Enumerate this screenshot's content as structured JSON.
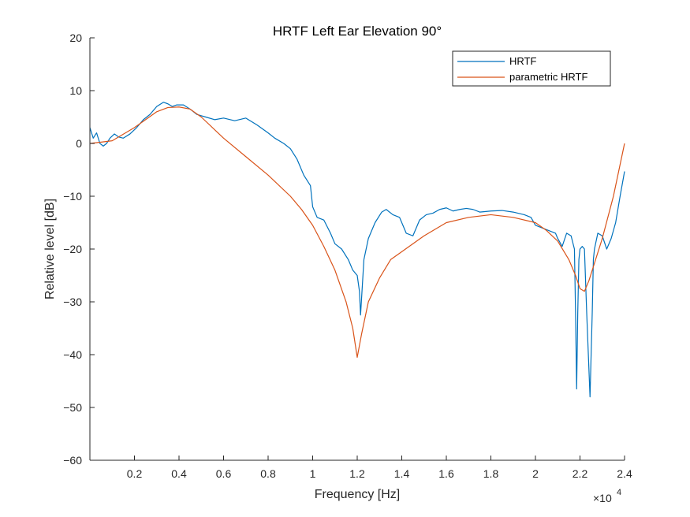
{
  "chart_data": {
    "type": "line",
    "title": "HRTF Left Ear Elevation 90°",
    "xlabel": "Frequency [Hz]",
    "ylabel": "Relative level [dB]",
    "x_exponent_label": "×10",
    "x_exponent_power": "4",
    "xlim": [
      0,
      24000
    ],
    "ylim": [
      -60,
      20
    ],
    "x_ticks": [
      2000,
      4000,
      6000,
      8000,
      10000,
      12000,
      14000,
      16000,
      18000,
      20000,
      22000,
      24000
    ],
    "x_tick_labels": [
      "0.2",
      "0.4",
      "0.6",
      "0.8",
      "1",
      "1.2",
      "1.4",
      "1.6",
      "1.8",
      "2",
      "2.2",
      "2.4"
    ],
    "y_ticks": [
      20,
      10,
      0,
      -10,
      -20,
      -30,
      -40,
      -50,
      -60
    ],
    "y_tick_labels": [
      "20",
      "10",
      "0",
      "−10",
      "−20",
      "−30",
      "−40",
      "−50",
      "−60"
    ],
    "grid": false,
    "legend_position": "top-right",
    "series": [
      {
        "name": "HRTF",
        "color": "#0072BD",
        "x": [
          0,
          150,
          300,
          450,
          600,
          750,
          900,
          1100,
          1300,
          1500,
          1800,
          2100,
          2400,
          2700,
          3000,
          3300,
          3500,
          3700,
          3900,
          4200,
          4500,
          4800,
          5200,
          5600,
          6000,
          6500,
          7000,
          7500,
          8000,
          8300,
          8700,
          9000,
          9300,
          9600,
          9900,
          10000,
          10200,
          10500,
          10800,
          11000,
          11300,
          11600,
          11800,
          12000,
          12100,
          12150,
          12200,
          12300,
          12500,
          12800,
          13100,
          13300,
          13600,
          13900,
          14200,
          14500,
          14800,
          15100,
          15400,
          15700,
          16000,
          16300,
          16600,
          16900,
          17200,
          17500,
          18000,
          18500,
          19000,
          19500,
          19800,
          20000,
          20300,
          20600,
          20900,
          21000,
          21200,
          21400,
          21600,
          21750,
          21800,
          21850,
          21900,
          21950,
          22000,
          22100,
          22200,
          22300,
          22450,
          22550,
          22600,
          22650,
          22700,
          22800,
          23000,
          23200,
          23400,
          23600,
          23800,
          24000
        ],
        "y": [
          3,
          1,
          2,
          0,
          -0.5,
          0,
          1,
          1.8,
          1.2,
          1,
          1.8,
          3,
          4.5,
          5.5,
          7,
          7.8,
          7.5,
          7,
          7.3,
          7.3,
          6.5,
          5.5,
          5,
          4.5,
          4.8,
          4.3,
          4.8,
          3.5,
          2,
          1,
          0,
          -1,
          -3,
          -6,
          -8,
          -12,
          -14,
          -14.5,
          -17,
          -19,
          -20,
          -22,
          -24,
          -25,
          -28,
          -32.5,
          -29,
          -22,
          -18,
          -15,
          -13,
          -12.5,
          -13.5,
          -14,
          -17,
          -17.5,
          -14.5,
          -13.5,
          -13.2,
          -12.5,
          -12.2,
          -12.8,
          -12.5,
          -12.3,
          -12.5,
          -13,
          -12.8,
          -12.7,
          -13,
          -13.5,
          -14,
          -15.5,
          -16,
          -16.5,
          -17,
          -18,
          -19.5,
          -17,
          -17.5,
          -20,
          -32,
          -46.5,
          -32,
          -22,
          -20,
          -19.5,
          -20,
          -32,
          -48,
          -32,
          -22,
          -20,
          -19,
          -17,
          -17.5,
          -20,
          -18,
          -15,
          -10,
          -5.3
        ]
      },
      {
        "name": "parametric HRTF",
        "color": "#D95319",
        "x": [
          0,
          1000,
          2000,
          3000,
          3500,
          4000,
          4500,
          5000,
          6000,
          7000,
          8000,
          9000,
          9500,
          10000,
          10500,
          11000,
          11500,
          11800,
          12000,
          12200,
          12500,
          13000,
          13500,
          14000,
          15000,
          16000,
          17000,
          18000,
          19000,
          20000,
          20500,
          21000,
          21500,
          21800,
          22000,
          22200,
          22400,
          22700,
          23000,
          23500,
          24000
        ],
        "y": [
          0,
          0.5,
          3,
          6,
          6.8,
          6.9,
          6.5,
          5,
          1,
          -2.5,
          -6,
          -10,
          -12.5,
          -15.5,
          -19.5,
          -24,
          -30,
          -35,
          -40.5,
          -36,
          -30,
          -25.5,
          -22,
          -20.5,
          -17.5,
          -15,
          -14,
          -13.5,
          -14,
          -15,
          -16.5,
          -18.5,
          -22,
          -25,
          -27.5,
          -28,
          -26,
          -22,
          -18,
          -10,
          0
        ]
      }
    ]
  }
}
